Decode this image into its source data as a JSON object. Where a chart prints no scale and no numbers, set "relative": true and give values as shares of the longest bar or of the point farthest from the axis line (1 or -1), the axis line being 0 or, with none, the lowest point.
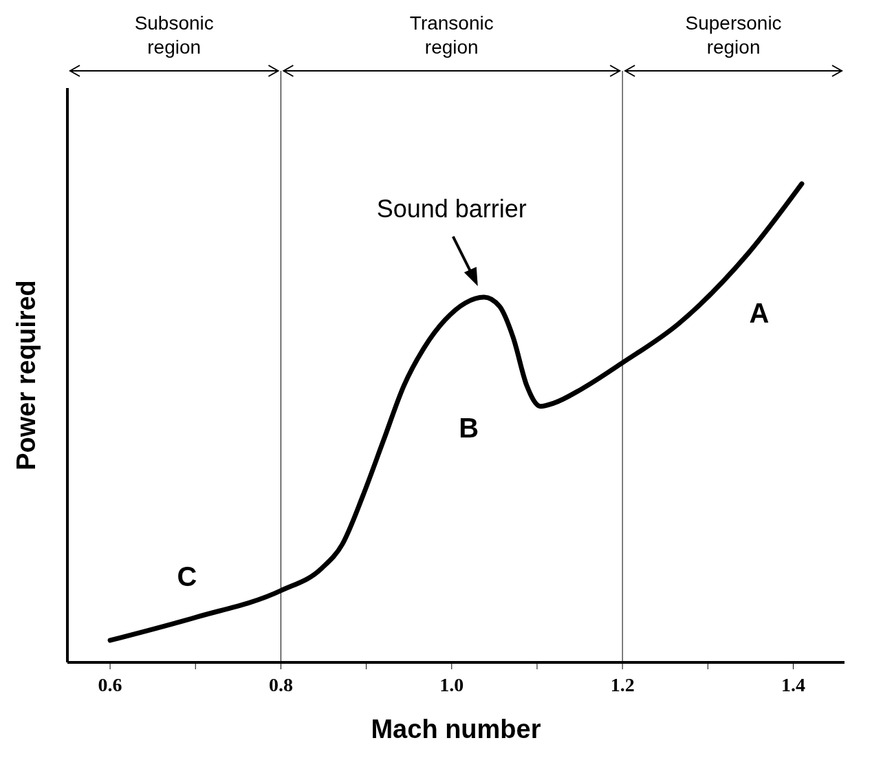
{
  "chart_data": {
    "type": "line",
    "relative": true,
    "xlabel": "Mach number",
    "ylabel": "Power required",
    "x": [
      0.6,
      0.7,
      0.8,
      0.848,
      0.872,
      0.896,
      0.92,
      0.944,
      0.968,
      0.992,
      1.016,
      1.038,
      1.056,
      1.072,
      1.088,
      1.104,
      1.12,
      1.152,
      1.2,
      1.266,
      1.346,
      1.41
    ],
    "series": [
      {
        "color": "#000000",
        "values": [
          0.046,
          0.094,
          0.15,
          0.197,
          0.247,
          0.348,
          0.463,
          0.578,
          0.658,
          0.715,
          0.751,
          0.763,
          0.744,
          0.679,
          0.578,
          0.535,
          0.542,
          0.571,
          0.626,
          0.708,
          0.852,
          1.0
        ]
      }
    ],
    "xlim": [
      0.55,
      1.46
    ],
    "xticks": [
      {
        "value": 0.6,
        "label": "0.6"
      },
      {
        "value": 0.7,
        "label": null
      },
      {
        "value": 0.8,
        "label": "0.8"
      },
      {
        "value": 0.9,
        "label": null
      },
      {
        "value": 1.0,
        "label": "1.0"
      },
      {
        "value": 1.1,
        "label": null
      },
      {
        "value": 1.2,
        "label": "1.2"
      },
      {
        "value": 1.3,
        "label": null
      },
      {
        "value": 1.4,
        "label": "1.4"
      }
    ],
    "ref_lines": [
      {
        "axis": "x",
        "value": 0.8,
        "color": "#000000"
      },
      {
        "axis": "x",
        "value": 1.2,
        "color": "#000000"
      }
    ],
    "annotations": [
      "Subsonic region",
      "Transonic region",
      "Supersonic region",
      "Sound barrier",
      "C",
      "B",
      "A"
    ],
    "grid": false,
    "marker": "none",
    "line_style": "solid"
  }
}
